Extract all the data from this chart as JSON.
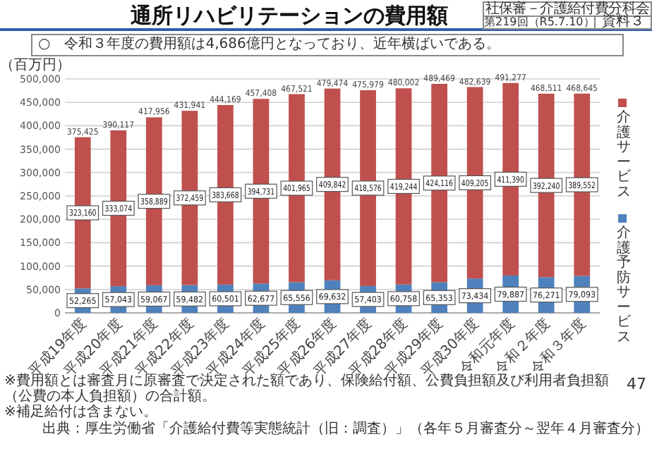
{
  "chart_data": {
    "type": "bar",
    "title": "通所リハビリテーションの費用額",
    "subtitle": "○　令和３年度の費用額は4,686億円となっており、近年横ばいである。",
    "ylabel": "（百万円）",
    "categories": [
      "平成19年度",
      "平成20年度",
      "平成21年度",
      "平成22年度",
      "平成23年度",
      "平成24年度",
      "平成25年度",
      "平成26年度",
      "平成27年度",
      "平成28年度",
      "平成29年度",
      "平成30年度",
      "令和元年度",
      "令和２年度",
      "令和３年度"
    ],
    "series": [
      {
        "name": "介護予防サービス",
        "color": "#4f81bd",
        "values": [
          52265,
          57043,
          59067,
          59482,
          60501,
          62677,
          65556,
          69632,
          57403,
          60758,
          65353,
          73434,
          79887,
          76271,
          79093
        ],
        "value_labels": [
          "52,265",
          "57,043",
          "59,067",
          "59,482",
          "60,501",
          "62,677",
          "65,556",
          "69,632",
          "57,403",
          "60,758",
          "65,353",
          "73,434",
          "79,887",
          "76,271",
          "79,093"
        ]
      },
      {
        "name": "介護サービス",
        "color": "#c0504d",
        "values": [
          323160,
          333074,
          358889,
          372459,
          383668,
          394731,
          401965,
          409842,
          418576,
          419244,
          424116,
          409205,
          411390,
          392240,
          389552
        ],
        "value_labels": [
          "323,160",
          "333,074",
          "358,889",
          "372,459",
          "383,668",
          "394,731",
          "401,965",
          "409,842",
          "418,576",
          "419,244",
          "424,116",
          "409,205",
          "411,390",
          "392,240",
          "389,552"
        ]
      }
    ],
    "stacked": true,
    "totals": [
      "375,425",
      "390,117",
      "417,956",
      "431,941",
      "444,169",
      "457,408",
      "467,521",
      "479,474",
      "475,979",
      "480,002",
      "489,469",
      "482,639",
      "491,277",
      "468,511",
      "468,645"
    ],
    "ylim": [
      0,
      500000
    ],
    "yticks": [
      {
        "value": 0,
        "label": "0"
      },
      {
        "value": 50000,
        "label": "50,000"
      },
      {
        "value": 100000,
        "label": "100,000"
      },
      {
        "value": 150000,
        "label": "150,000"
      },
      {
        "value": 200000,
        "label": "200,000"
      },
      {
        "value": 250000,
        "label": "250,000"
      },
      {
        "value": 300000,
        "label": "300,000"
      },
      {
        "value": 350000,
        "label": "350,000"
      },
      {
        "value": 400000,
        "label": "400,000"
      },
      {
        "value": 450000,
        "label": "450,000"
      },
      {
        "value": 500000,
        "label": "500,000"
      }
    ],
    "grid": "y",
    "legend": "right",
    "annotations": [
      "社保審－介護給付費分科会",
      "第219回（R5.7.10）",
      "資料３",
      "※費用額とは審査月に原審査で決定された額であり、保険給付額、公費負担額及び利用者負担額（公費の本人負担額）の合計額。",
      "※補足給付は含まない。",
      "出典：厚生労働省「介護給付費等実態統計（旧：調査）」（各年５月審査分～翌年４月審査分）",
      "47"
    ]
  }
}
